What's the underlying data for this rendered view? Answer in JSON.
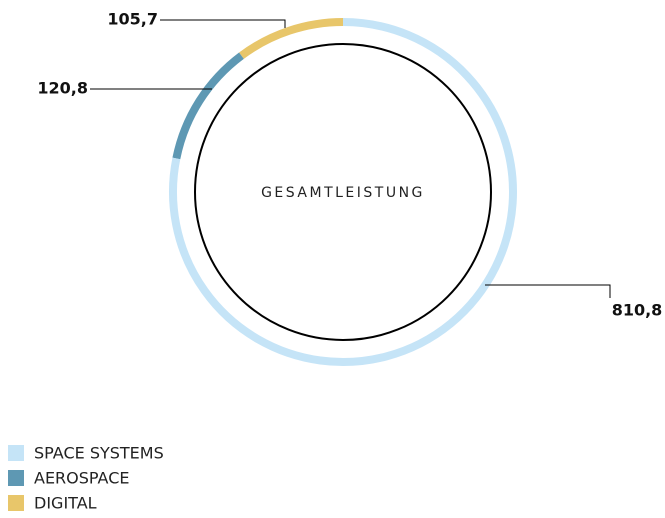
{
  "chart_data": {
    "type": "pie",
    "donut": true,
    "center_label": "GESAMTLEISTUNG",
    "categories": [
      "SPACE SYSTEMS",
      "AEROSPACE",
      "DIGITAL"
    ],
    "values": [
      810.8,
      120.8,
      105.7
    ],
    "value_labels": [
      "810,8",
      "120,8",
      "105,7"
    ],
    "colors": [
      "#c5e4f7",
      "#5e98b3",
      "#e8c66a"
    ]
  }
}
